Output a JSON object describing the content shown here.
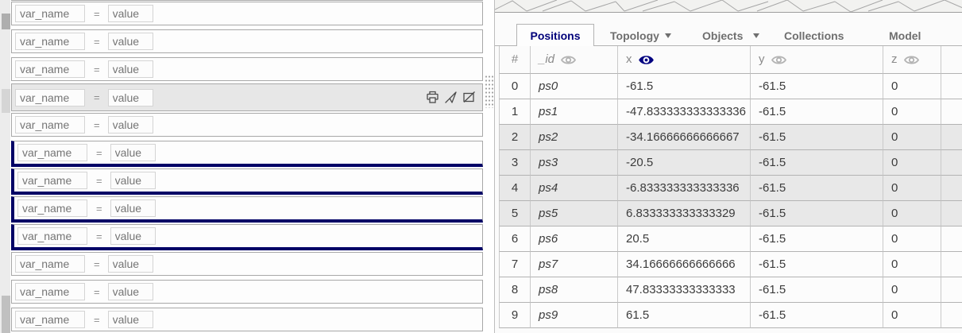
{
  "colors": {
    "accent_navy": "#000080",
    "selection_border": "#000066",
    "shaded_row": "#e8e8e8"
  },
  "left_panel": {
    "row_template": {
      "name_placeholder": "var_name",
      "equals_sign": "=",
      "value_placeholder": "value"
    },
    "rows": [
      {
        "state": "normal"
      },
      {
        "state": "normal"
      },
      {
        "state": "normal"
      },
      {
        "state": "highlighted",
        "icons": [
          "printer-icon",
          "send-icon",
          "hide-icon"
        ]
      },
      {
        "state": "normal"
      },
      {
        "state": "selected"
      },
      {
        "state": "selected"
      },
      {
        "state": "selected"
      },
      {
        "state": "selected"
      },
      {
        "state": "normal"
      },
      {
        "state": "normal"
      },
      {
        "state": "normal"
      }
    ]
  },
  "right_panel": {
    "tabs": [
      {
        "label": "Positions",
        "active": true
      },
      {
        "label": "Topology",
        "caret": true
      },
      {
        "label": "Objects",
        "caret": true,
        "caret_gap": "wide"
      },
      {
        "label": "Collections"
      },
      {
        "label": "Model"
      }
    ],
    "table": {
      "columns": [
        {
          "key": "index",
          "label": "#"
        },
        {
          "key": "id",
          "label": "_id",
          "eye": "gray",
          "italic": true
        },
        {
          "key": "x",
          "label": "x",
          "eye": "navy"
        },
        {
          "key": "y",
          "label": "y",
          "eye": "gray"
        },
        {
          "key": "z",
          "label": "z",
          "eye": "gray"
        }
      ],
      "rows": [
        {
          "index": 0,
          "id": "ps0",
          "x": "-61.5",
          "y": "-61.5",
          "z": "0",
          "shaded": false
        },
        {
          "index": 1,
          "id": "ps1",
          "x": "-47.833333333333336",
          "y": "-61.5",
          "z": "0",
          "shaded": false
        },
        {
          "index": 2,
          "id": "ps2",
          "x": "-34.16666666666667",
          "y": "-61.5",
          "z": "0",
          "shaded": true
        },
        {
          "index": 3,
          "id": "ps3",
          "x": "-20.5",
          "y": "-61.5",
          "z": "0",
          "shaded": true
        },
        {
          "index": 4,
          "id": "ps4",
          "x": "-6.833333333333336",
          "y": "-61.5",
          "z": "0",
          "shaded": true
        },
        {
          "index": 5,
          "id": "ps5",
          "x": "6.833333333333329",
          "y": "-61.5",
          "z": "0",
          "shaded": true
        },
        {
          "index": 6,
          "id": "ps6",
          "x": "20.5",
          "y": "-61.5",
          "z": "0",
          "shaded": false
        },
        {
          "index": 7,
          "id": "ps7",
          "x": "34.16666666666666",
          "y": "-61.5",
          "z": "0",
          "shaded": false
        },
        {
          "index": 8,
          "id": "ps8",
          "x": "47.83333333333333",
          "y": "-61.5",
          "z": "0",
          "shaded": false
        },
        {
          "index": 9,
          "id": "ps9",
          "x": "61.5",
          "y": "-61.5",
          "z": "0",
          "shaded": false
        }
      ]
    }
  }
}
